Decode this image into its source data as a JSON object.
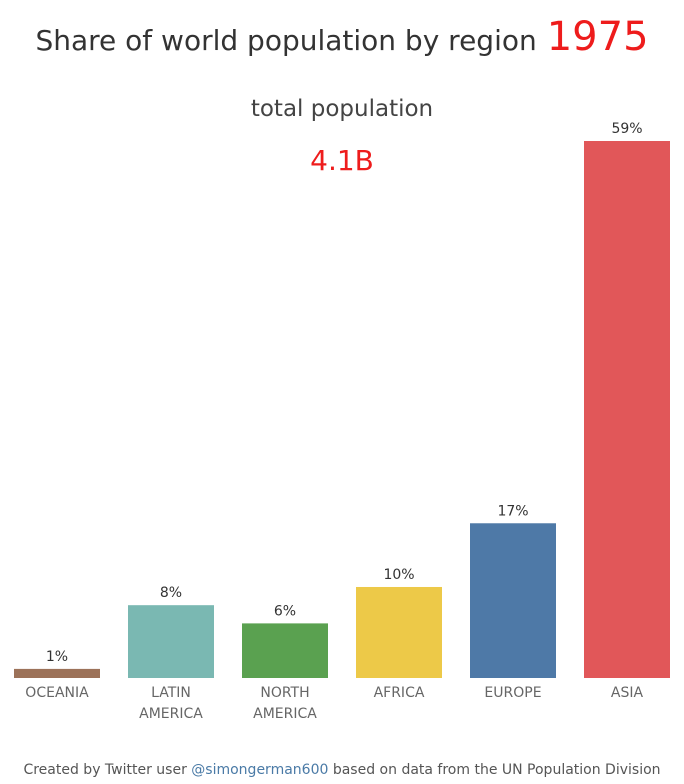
{
  "header": {
    "title": "Share of world population by region",
    "year": "1975",
    "subtitle": "total population",
    "total": "4.1B"
  },
  "footer": {
    "prefix": "Created by Twitter user",
    "handle": "@simongerman600",
    "suffix": "based on data from the UN Population Division"
  },
  "chart_data": {
    "type": "bar",
    "categories": [
      [
        "OCEANIA"
      ],
      [
        "LATIN",
        "AMERICA"
      ],
      [
        "NORTH",
        "AMERICA"
      ],
      [
        "AFRICA"
      ],
      [
        "EUROPE"
      ],
      [
        "ASIA"
      ]
    ],
    "values": [
      1,
      8,
      6,
      10,
      17,
      59
    ],
    "value_labels": [
      "1%",
      "8%",
      "6%",
      "10%",
      "17%",
      "59%"
    ],
    "colors": [
      "#9c7259",
      "#7ab8b2",
      "#5aa150",
      "#edc948",
      "#4e79a7",
      "#e15759"
    ],
    "unit": "%",
    "grid": false,
    "ylim": [
      0,
      59
    ]
  }
}
